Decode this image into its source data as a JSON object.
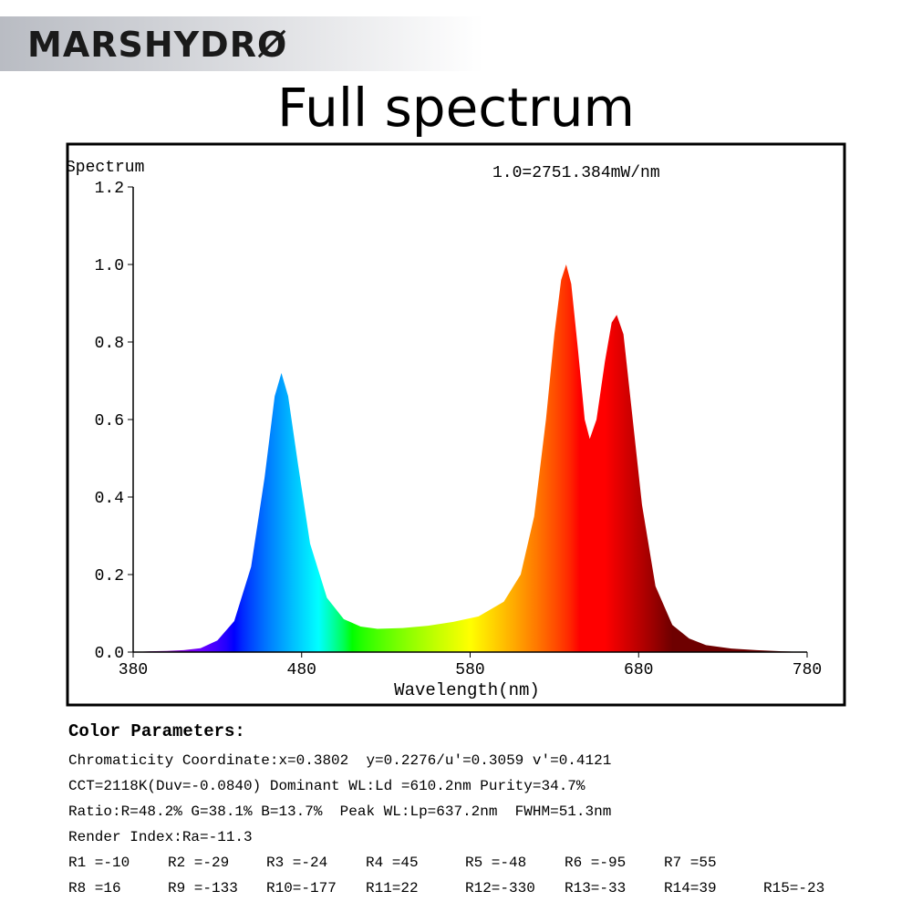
{
  "header": {
    "logo": "MARSHYDRØ",
    "title": "Full spectrum"
  },
  "chart_data": {
    "type": "area",
    "y_label": "Spectrum",
    "annotation": "1.0=2751.384mW/nm",
    "x_label": "Wavelength(nm)",
    "x": [
      380,
      390,
      400,
      410,
      420,
      430,
      440,
      450,
      458,
      464,
      468,
      472,
      478,
      485,
      495,
      505,
      515,
      525,
      540,
      555,
      570,
      585,
      600,
      610,
      618,
      625,
      630,
      634,
      637,
      640,
      644,
      648,
      651,
      655,
      660,
      664,
      667,
      671,
      676,
      682,
      690,
      700,
      710,
      720,
      735,
      750,
      765,
      780
    ],
    "values": [
      0,
      0.002,
      0.003,
      0.005,
      0.01,
      0.03,
      0.08,
      0.22,
      0.45,
      0.66,
      0.72,
      0.66,
      0.48,
      0.28,
      0.14,
      0.085,
      0.066,
      0.06,
      0.062,
      0.068,
      0.078,
      0.092,
      0.13,
      0.2,
      0.35,
      0.6,
      0.82,
      0.96,
      1.0,
      0.95,
      0.78,
      0.6,
      0.55,
      0.6,
      0.75,
      0.85,
      0.87,
      0.82,
      0.62,
      0.38,
      0.17,
      0.07,
      0.035,
      0.018,
      0.009,
      0.005,
      0.002,
      0
    ],
    "xlim": [
      380,
      780
    ],
    "xticks": [
      380,
      480,
      580,
      680,
      780
    ],
    "ylim": [
      0,
      1.2
    ],
    "yticks": [
      {
        "value": 0,
        "label": "0.0"
      },
      0.2,
      0.4,
      0.6,
      0.8,
      {
        "value": 1,
        "label": "1.0"
      },
      1.2
    ]
  },
  "parameters": {
    "title": "Color Parameters:",
    "lines": [
      "Chromaticity Coordinate:x=0.3802  y=0.2276/u'=0.3059 v'=0.4121",
      "CCT=2118K(Duv=-0.0840) Dominant WL:Ld =610.2nm Purity=34.7%",
      "Ratio:R=48.2% G=38.1% B=13.7%  Peak WL:Lp=637.2nm  FWHM=51.3nm",
      "Render Index:Ra=-11.3"
    ],
    "render_rows": [
      [
        "R1 =-10",
        "R2 =-29",
        "R3 =-24",
        "R4 =45",
        "R5 =-48",
        "R6 =-95",
        "R7 =55"
      ],
      [
        "R8 =16",
        "R9 =-133",
        "R10=-177",
        "R11=22",
        "R12=-330",
        "R13=-33",
        "R14=39",
        "R15=-23"
      ]
    ]
  }
}
